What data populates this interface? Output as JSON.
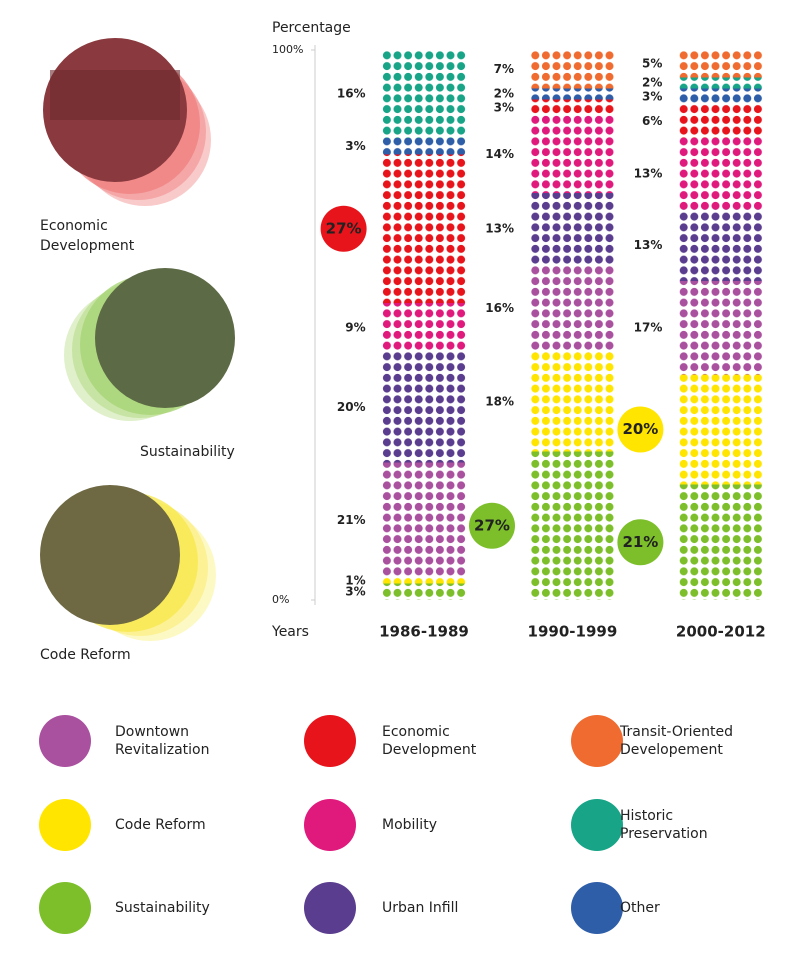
{
  "images": [
    {
      "caption": "Economic Development"
    },
    {
      "caption": "Sustainability"
    },
    {
      "caption": "Code Reform"
    }
  ],
  "chart_data": {
    "type": "dotstack",
    "ylabel": "Percentage",
    "xlabel": "Years",
    "ylim": [
      0,
      100
    ],
    "yticks": [
      {
        "value": 0,
        "label": "0%"
      },
      {
        "value": 100,
        "label": "100%"
      }
    ],
    "categories": [
      "1986-1989",
      "1990-1999",
      "2000-2012"
    ],
    "series": [
      {
        "name": "Sustainability",
        "color": "#7cbf2a",
        "values": [
          3,
          27,
          21
        ],
        "value_labels": [
          "3%",
          "27%",
          "21%"
        ],
        "highlight": [
          false,
          true,
          true
        ]
      },
      {
        "name": "Code Reform",
        "color": "#ffe500",
        "values": [
          1,
          18,
          20
        ],
        "value_labels": [
          "1%",
          "18%",
          "20%"
        ],
        "highlight": [
          false,
          false,
          true
        ]
      },
      {
        "name": "Downtown Revitalization",
        "color": "#a9509e",
        "values": [
          21,
          16,
          17
        ],
        "value_labels": [
          "21%",
          "16%",
          "17%"
        ]
      },
      {
        "name": "Urban Infill",
        "color": "#5a3d8e",
        "values": [
          20,
          13,
          13
        ],
        "value_labels": [
          "20%",
          "13%",
          "13%"
        ]
      },
      {
        "name": "Mobility",
        "color": "#e0197d",
        "values": [
          9,
          14,
          13
        ],
        "value_labels": [
          "9%",
          "14%",
          "13%"
        ]
      },
      {
        "name": "Economic Development",
        "color": "#e8141c",
        "values": [
          27,
          3,
          6
        ],
        "value_labels": [
          "27%",
          "3%",
          "6%"
        ],
        "highlight": [
          true,
          false,
          false
        ]
      },
      {
        "name": "Other",
        "color": "#2e5ea8",
        "values": [
          3,
          2,
          3
        ],
        "value_labels": [
          "3%",
          "2%",
          "3%"
        ]
      },
      {
        "name": "Historic Preservation",
        "color": "#17a487",
        "values": [
          16,
          null,
          2
        ],
        "value_labels": [
          "16%",
          null,
          "2%"
        ]
      },
      {
        "name": "Transit-Oriented Developement",
        "color": "#ef6b30",
        "values": [
          null,
          7,
          5
        ],
        "value_labels": [
          null,
          "7%",
          "5%"
        ]
      }
    ]
  }
}
